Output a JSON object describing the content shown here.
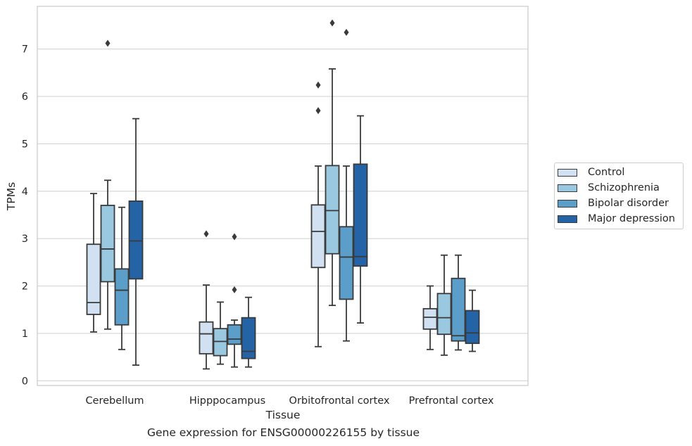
{
  "caption": "Gene expression for ENSG00000226155 by tissue",
  "chart_data": {
    "type": "box",
    "xlabel": "Tissue",
    "ylabel": "TPMs",
    "ylim": [
      -0.1,
      7.9
    ],
    "yticks": [
      0,
      1,
      2,
      3,
      4,
      5,
      6,
      7
    ],
    "grid": "horizontal",
    "legend_position": "right",
    "categories": [
      "Cerebellum",
      "Hipppocampus",
      "Orbitofrontal cortex",
      "Prefrontal cortex"
    ],
    "series": [
      {
        "name": "Control",
        "color": "#d1e1f1",
        "boxes": [
          {
            "whisker_low": 1.03,
            "q1": 1.4,
            "median": 1.65,
            "q3": 2.88,
            "whisker_high": 3.95,
            "outliers": []
          },
          {
            "whisker_low": 0.25,
            "q1": 0.57,
            "median": 0.99,
            "q3": 1.24,
            "whisker_high": 2.02,
            "outliers": [
              3.1
            ]
          },
          {
            "whisker_low": 0.72,
            "q1": 2.39,
            "median": 3.15,
            "q3": 3.71,
            "whisker_high": 4.53,
            "outliers": [
              5.7,
              6.24
            ]
          },
          {
            "whisker_low": 0.66,
            "q1": 1.09,
            "median": 1.34,
            "q3": 1.52,
            "whisker_high": 2.0,
            "outliers": []
          }
        ]
      },
      {
        "name": "Schizophrenia",
        "color": "#9ac8e0",
        "boxes": [
          {
            "whisker_low": 1.09,
            "q1": 2.09,
            "median": 2.78,
            "q3": 3.7,
            "whisker_high": 4.23,
            "outliers": [
              7.12
            ]
          },
          {
            "whisker_low": 0.35,
            "q1": 0.53,
            "median": 0.83,
            "q3": 1.1,
            "whisker_high": 1.66,
            "outliers": []
          },
          {
            "whisker_low": 1.59,
            "q1": 2.68,
            "median": 3.59,
            "q3": 4.54,
            "whisker_high": 6.58,
            "outliers": [
              7.55
            ]
          },
          {
            "whisker_low": 0.54,
            "q1": 0.98,
            "median": 1.33,
            "q3": 1.84,
            "whisker_high": 2.65,
            "outliers": []
          }
        ]
      },
      {
        "name": "Bipolar disorder",
        "color": "#5a9ec9",
        "boxes": [
          {
            "whisker_low": 0.66,
            "q1": 1.18,
            "median": 1.91,
            "q3": 2.36,
            "whisker_high": 3.66,
            "outliers": []
          },
          {
            "whisker_low": 0.29,
            "q1": 0.77,
            "median": 0.88,
            "q3": 1.18,
            "whisker_high": 1.28,
            "outliers": [
              1.92,
              3.04
            ]
          },
          {
            "whisker_low": 0.84,
            "q1": 1.72,
            "median": 2.61,
            "q3": 3.25,
            "whisker_high": 4.53,
            "outliers": [
              7.35
            ]
          },
          {
            "whisker_low": 0.65,
            "q1": 0.84,
            "median": 0.95,
            "q3": 2.16,
            "whisker_high": 2.65,
            "outliers": []
          }
        ]
      },
      {
        "name": "Major depression",
        "color": "#2463a6",
        "boxes": [
          {
            "whisker_low": 0.33,
            "q1": 2.15,
            "median": 2.95,
            "q3": 3.79,
            "whisker_high": 5.53,
            "outliers": []
          },
          {
            "whisker_low": 0.29,
            "q1": 0.47,
            "median": 0.62,
            "q3": 1.33,
            "whisker_high": 1.76,
            "outliers": []
          },
          {
            "whisker_low": 1.22,
            "q1": 2.42,
            "median": 2.62,
            "q3": 4.57,
            "whisker_high": 5.59,
            "outliers": []
          },
          {
            "whisker_low": 0.62,
            "q1": 0.79,
            "median": 1.01,
            "q3": 1.48,
            "whisker_high": 1.91,
            "outliers": []
          }
        ]
      }
    ]
  }
}
